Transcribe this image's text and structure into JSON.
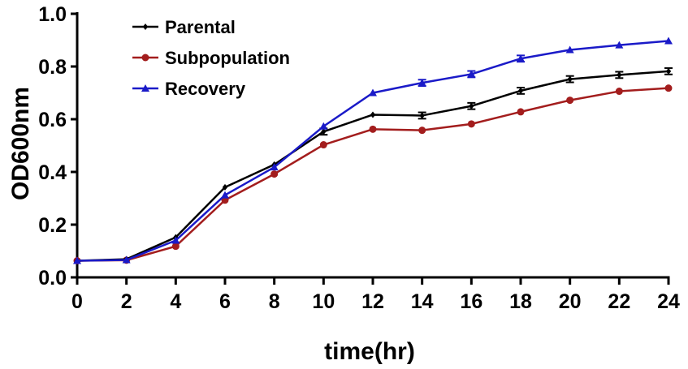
{
  "chart_data": {
    "type": "line",
    "title": "",
    "xlabel": "time(hr)",
    "ylabel": "OD600nm",
    "xlim": [
      0,
      24
    ],
    "ylim": [
      0,
      1.0
    ],
    "x": [
      0,
      2,
      4,
      6,
      8,
      10,
      12,
      14,
      16,
      18,
      20,
      22,
      24
    ],
    "xticks": [
      "0",
      "2",
      "4",
      "6",
      "8",
      "10",
      "12",
      "14",
      "16",
      "18",
      "20",
      "22",
      "24"
    ],
    "yticks": [
      "0.0",
      "0.2",
      "0.4",
      "0.6",
      "0.8",
      "1.0"
    ],
    "legend_position": "top-left",
    "grid": false,
    "series": [
      {
        "name": "Parental",
        "color": "#000000",
        "marker": "diamond",
        "values": [
          0.063,
          0.069,
          0.152,
          0.342,
          0.428,
          0.553,
          0.617,
          0.614,
          0.65,
          0.708,
          0.752,
          0.768,
          0.782
        ],
        "errors": [
          0,
          0,
          0,
          0,
          0,
          0.012,
          0,
          0.012,
          0.012,
          0.012,
          0.012,
          0.012,
          0.012
        ]
      },
      {
        "name": "Subpopulation",
        "color": "#a31d1d",
        "marker": "circle",
        "values": [
          0.063,
          0.065,
          0.118,
          0.293,
          0.392,
          0.503,
          0.562,
          0.558,
          0.582,
          0.628,
          0.672,
          0.706,
          0.718
        ],
        "errors": [
          0,
          0,
          0,
          0,
          0,
          0,
          0,
          0,
          0,
          0,
          0,
          0,
          0
        ]
      },
      {
        "name": "Recovery",
        "color": "#1a1ac8",
        "marker": "triangle",
        "values": [
          0.063,
          0.066,
          0.14,
          0.312,
          0.418,
          0.573,
          0.7,
          0.738,
          0.771,
          0.83,
          0.863,
          0.881,
          0.897
        ],
        "errors": [
          0,
          0,
          0,
          0,
          0,
          0,
          0,
          0.012,
          0.012,
          0.012,
          0,
          0,
          0
        ]
      }
    ]
  }
}
